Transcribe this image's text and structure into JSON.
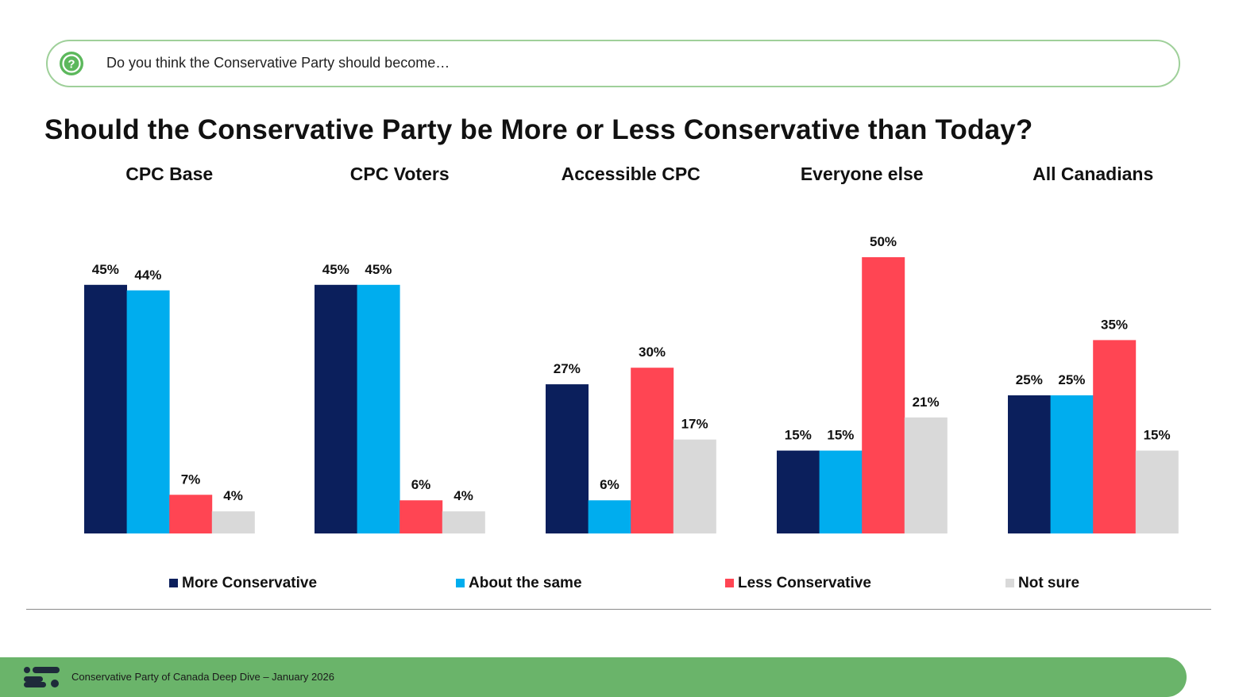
{
  "question": {
    "icon": "question-icon",
    "text": "Do you think the Conservative Party should become…"
  },
  "footer": {
    "logo_icon": "brand-logo-icon",
    "text": "Conservative Party of Canada Deep Dive – January 2026"
  },
  "chart_data": {
    "type": "bar",
    "title": "Should the Conservative Party be More or Less Conservative than Today?",
    "xlabel": "",
    "ylabel": "",
    "ylim": [
      0,
      55
    ],
    "grid": false,
    "legend_position": "bottom",
    "categories": [
      "CPC Base",
      "CPC Voters",
      "Accessible CPC",
      "Everyone else",
      "All Canadians"
    ],
    "series": [
      {
        "name": "More Conservative",
        "color": "#0b1f5c",
        "values": [
          45,
          45,
          27,
          15,
          25
        ],
        "labels": [
          "45%",
          "45%",
          "27%",
          "15%",
          "25%"
        ]
      },
      {
        "name": "About the same",
        "color": "#00adee",
        "values": [
          44,
          45,
          6,
          15,
          25
        ],
        "labels": [
          "44%",
          "45%",
          "6%",
          "15%",
          "25%"
        ]
      },
      {
        "name": "Less Conservative",
        "color": "#ff4553",
        "values": [
          7,
          6,
          30,
          50,
          35
        ],
        "labels": [
          "7%",
          "6%",
          "30%",
          "50%",
          "35%"
        ]
      },
      {
        "name": "Not sure",
        "color": "#d9d9d9",
        "values": [
          4,
          4,
          17,
          21,
          15
        ],
        "labels": [
          "4%",
          "4%",
          "17%",
          "21%",
          "15%"
        ]
      }
    ]
  }
}
